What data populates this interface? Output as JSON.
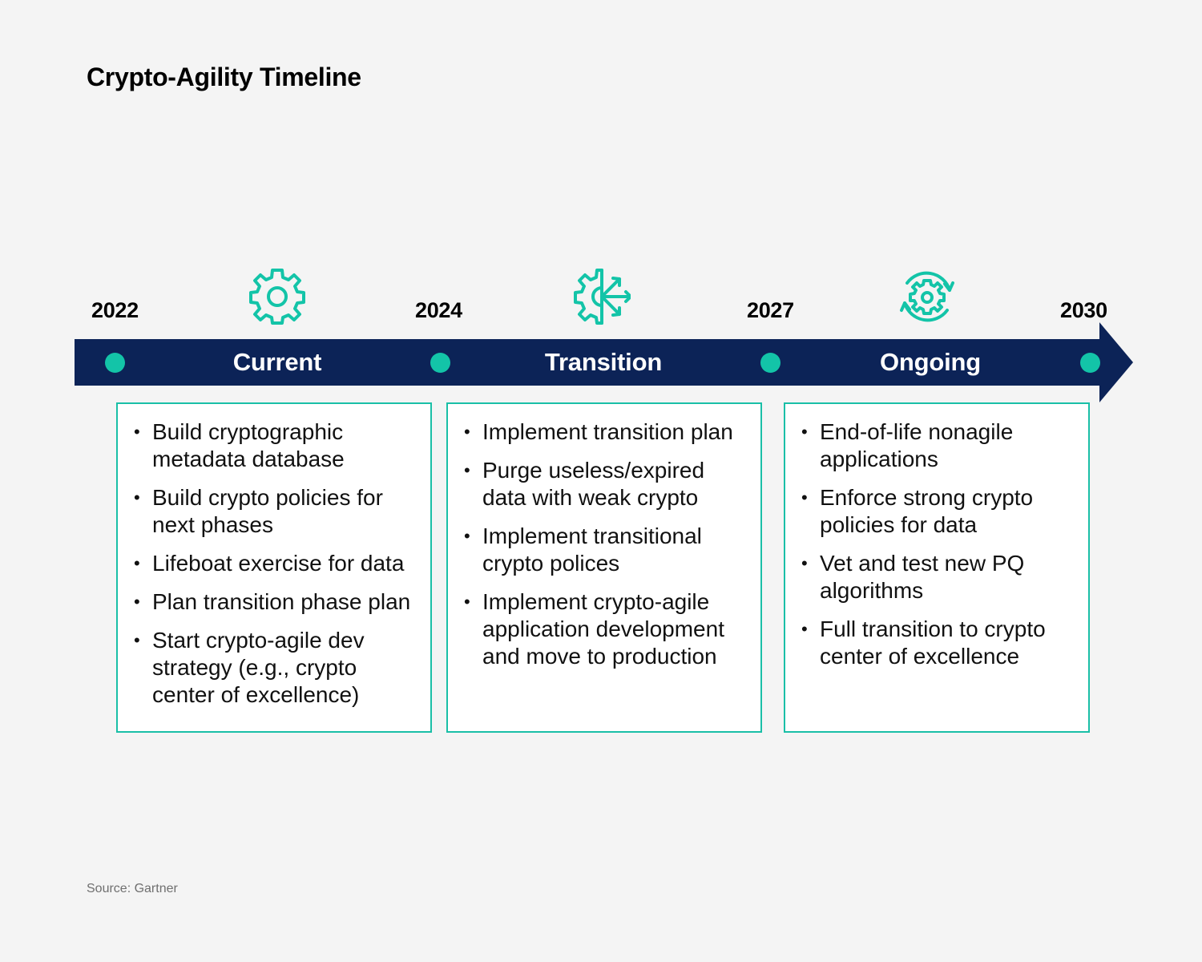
{
  "title": "Crypto-Agility Timeline",
  "years": [
    "2022",
    "2024",
    "2027",
    "2030"
  ],
  "colors": {
    "background": "#f4f4f4",
    "bar": "#0c2357",
    "accent": "#13c4a8",
    "card_border": "#1abfa7"
  },
  "phases": [
    {
      "label": "Current",
      "icon": "gear-icon",
      "items": [
        "Build cryptographic metadata database",
        "Build crypto policies for next phases",
        "Lifeboat exercise for data",
        "Plan transition phase plan",
        "Start crypto-agile dev strategy (e.g., crypto center of excellence)"
      ]
    },
    {
      "label": "Transition",
      "icon": "half-gear-arrows-icon",
      "items": [
        "Implement transition plan",
        "Purge useless/expired data with weak crypto",
        "Implement transitional crypto polices",
        "Implement crypto-agile application development and move to production"
      ]
    },
    {
      "label": "Ongoing",
      "icon": "gear-refresh-icon",
      "items": [
        "End-of-life nonagile applications",
        "Enforce strong crypto policies for data",
        "Vet and test new PQ algorithms",
        "Full transition to crypto center of excellence"
      ]
    }
  ],
  "source": "Source: Gartner"
}
